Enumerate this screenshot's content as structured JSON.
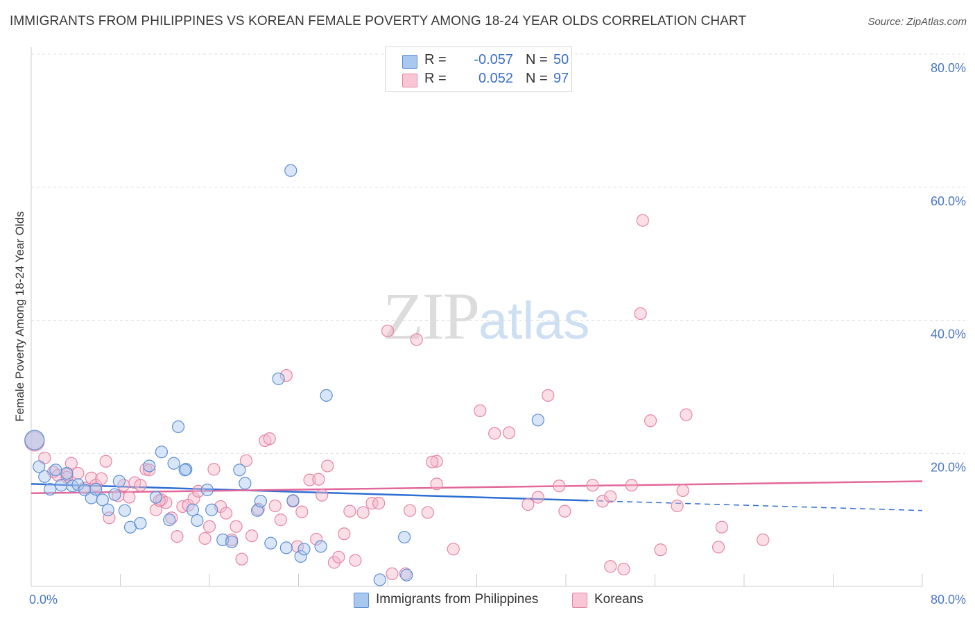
{
  "title": "IMMIGRANTS FROM PHILIPPINES VS KOREAN FEMALE POVERTY AMONG 18-24 YEAR OLDS CORRELATION CHART",
  "source": "Source: ZipAtlas.com",
  "watermark": {
    "zip": "ZIP",
    "atlas": "atlas"
  },
  "stats": [
    {
      "r_label": "R =",
      "r_value": "-0.057",
      "n_label": "N =",
      "n_value": "50"
    },
    {
      "r_label": "R =",
      "r_value": "0.052",
      "n_label": "N =",
      "n_value": "97"
    }
  ],
  "legend": [
    {
      "label": "Immigrants from Philippines"
    },
    {
      "label": "Koreans"
    }
  ],
  "colors": {
    "blue_fill": "#a9c8ee",
    "blue_stroke": "#5b8fd6",
    "blue_line": "#2e6fd3",
    "pink_fill": "#f4b7ca",
    "pink_stroke": "#e585a6",
    "pink_line": "#e2679a",
    "tick_text": "#4a78c2",
    "grid": "#dddddd"
  },
  "chart_data": {
    "type": "scatter",
    "title": "IMMIGRANTS FROM PHILIPPINES VS KOREAN FEMALE POVERTY AMONG 18-24 YEAR OLDS CORRELATION CHART",
    "xlabel": "",
    "ylabel": "Female Poverty Among 18-24 Year Olds",
    "xlim": [
      0,
      80
    ],
    "ylim": [
      0,
      80
    ],
    "x_tick_labels": [
      "0.0%",
      "80.0%"
    ],
    "y_ticks": [
      20,
      40,
      60,
      80
    ],
    "y_tick_labels": [
      "20.0%",
      "40.0%",
      "60.0%",
      "80.0%"
    ],
    "grid": true,
    "series": [
      {
        "name": "Immigrants from Philippines",
        "r": -0.057,
        "n": 50,
        "trend": {
          "x_solid": [
            0,
            50
          ],
          "y_solid": [
            15.4,
            12.9
          ],
          "x_dashed": [
            50,
            80
          ],
          "y_dashed": [
            12.9,
            11.4
          ]
        },
        "points": [
          [
            0.3,
            22.0
          ],
          [
            0.7,
            18.0
          ],
          [
            1.2,
            16.5
          ],
          [
            1.7,
            14.6
          ],
          [
            2.2,
            17.5
          ],
          [
            2.7,
            15.2
          ],
          [
            3.2,
            17.0
          ],
          [
            3.7,
            15.1
          ],
          [
            4.2,
            15.3
          ],
          [
            4.8,
            14.5
          ],
          [
            5.4,
            13.3
          ],
          [
            5.8,
            14.6
          ],
          [
            6.4,
            13.0
          ],
          [
            6.9,
            11.5
          ],
          [
            7.5,
            13.8
          ],
          [
            7.9,
            15.8
          ],
          [
            8.4,
            11.4
          ],
          [
            8.9,
            8.9
          ],
          [
            9.8,
            9.5
          ],
          [
            10.6,
            18.1
          ],
          [
            11.2,
            13.4
          ],
          [
            11.7,
            20.2
          ],
          [
            12.4,
            10.0
          ],
          [
            12.8,
            18.5
          ],
          [
            13.2,
            24.0
          ],
          [
            13.9,
            17.6
          ],
          [
            14.5,
            11.5
          ],
          [
            14.9,
            9.9
          ],
          [
            15.8,
            14.5
          ],
          [
            16.2,
            11.5
          ],
          [
            17.2,
            7.0
          ],
          [
            18.0,
            6.7
          ],
          [
            18.7,
            17.5
          ],
          [
            19.2,
            15.5
          ],
          [
            20.3,
            11.4
          ],
          [
            20.6,
            12.8
          ],
          [
            21.5,
            6.5
          ],
          [
            22.2,
            31.2
          ],
          [
            22.9,
            5.8
          ],
          [
            23.5,
            12.9
          ],
          [
            24.2,
            4.5
          ],
          [
            24.5,
            5.6
          ],
          [
            26.0,
            6.0
          ],
          [
            26.5,
            28.7
          ],
          [
            23.3,
            62.5
          ],
          [
            31.3,
            1.0
          ],
          [
            33.5,
            7.4
          ],
          [
            33.7,
            1.7
          ],
          [
            45.5,
            25.0
          ],
          [
            13.8,
            17.5
          ]
        ]
      },
      {
        "name": "Koreans",
        "r": 0.052,
        "n": 97,
        "trend": {
          "x": [
            0,
            80
          ],
          "y": [
            14.0,
            15.8
          ]
        },
        "points": [
          [
            0.3,
            21.8
          ],
          [
            1.2,
            19.3
          ],
          [
            2.0,
            17.2
          ],
          [
            2.4,
            16.7
          ],
          [
            3.2,
            16.8
          ],
          [
            3.6,
            18.5
          ],
          [
            4.2,
            17.0
          ],
          [
            4.8,
            14.8
          ],
          [
            5.4,
            16.3
          ],
          [
            5.8,
            15.2
          ],
          [
            6.3,
            16.2
          ],
          [
            6.7,
            18.8
          ],
          [
            7.0,
            10.3
          ],
          [
            7.8,
            13.6
          ],
          [
            8.3,
            15.2
          ],
          [
            8.8,
            13.4
          ],
          [
            9.3,
            15.6
          ],
          [
            9.8,
            15.2
          ],
          [
            10.3,
            17.6
          ],
          [
            10.6,
            17.5
          ],
          [
            11.2,
            11.5
          ],
          [
            11.7,
            13.0
          ],
          [
            12.1,
            12.6
          ],
          [
            12.6,
            10.3
          ],
          [
            13.1,
            7.5
          ],
          [
            13.6,
            12.0
          ],
          [
            14.1,
            12.2
          ],
          [
            14.6,
            13.2
          ],
          [
            15.0,
            14.3
          ],
          [
            15.6,
            7.2
          ],
          [
            16.0,
            9.0
          ],
          [
            16.4,
            17.6
          ],
          [
            17.0,
            12.0
          ],
          [
            17.5,
            11.0
          ],
          [
            18.0,
            7.0
          ],
          [
            18.4,
            9.0
          ],
          [
            18.9,
            4.1
          ],
          [
            19.3,
            18.9
          ],
          [
            19.8,
            7.6
          ],
          [
            20.4,
            11.6
          ],
          [
            21.0,
            21.9
          ],
          [
            21.4,
            22.2
          ],
          [
            21.9,
            12.1
          ],
          [
            22.4,
            10.0
          ],
          [
            22.9,
            31.7
          ],
          [
            23.5,
            12.8
          ],
          [
            23.9,
            6.0
          ],
          [
            24.3,
            11.2
          ],
          [
            25.0,
            16.0
          ],
          [
            25.6,
            7.1
          ],
          [
            26.1,
            13.7
          ],
          [
            26.6,
            18.1
          ],
          [
            27.2,
            3.6
          ],
          [
            27.6,
            4.4
          ],
          [
            28.1,
            7.9
          ],
          [
            28.6,
            11.3
          ],
          [
            29.1,
            3.9
          ],
          [
            29.8,
            11.1
          ],
          [
            30.6,
            12.5
          ],
          [
            31.2,
            12.5
          ],
          [
            32.0,
            38.4
          ],
          [
            32.4,
            1.9
          ],
          [
            33.6,
            1.9
          ],
          [
            34.0,
            11.4
          ],
          [
            34.6,
            37.1
          ],
          [
            35.6,
            11.1
          ],
          [
            36.4,
            18.8
          ],
          [
            36.4,
            15.4
          ],
          [
            40.3,
            26.4
          ],
          [
            41.6,
            23.0
          ],
          [
            42.9,
            23.1
          ],
          [
            44.6,
            12.3
          ],
          [
            45.5,
            13.4
          ],
          [
            46.4,
            28.7
          ],
          [
            47.4,
            15.1
          ],
          [
            47.9,
            11.3
          ],
          [
            50.4,
            15.2
          ],
          [
            51.3,
            12.8
          ],
          [
            52.0,
            3.0
          ],
          [
            53.2,
            2.6
          ],
          [
            53.9,
            15.2
          ],
          [
            54.7,
            41.0
          ],
          [
            54.9,
            55.0
          ],
          [
            55.6,
            24.9
          ],
          [
            56.5,
            5.5
          ],
          [
            58.0,
            12.1
          ],
          [
            58.5,
            14.4
          ],
          [
            58.8,
            25.8
          ],
          [
            61.7,
            5.9
          ],
          [
            62.0,
            8.9
          ],
          [
            65.7,
            7.0
          ],
          [
            37.9,
            5.6
          ],
          [
            52.0,
            13.5
          ],
          [
            11.5,
            12.9
          ],
          [
            3.2,
            16.4
          ],
          [
            25.8,
            16.1
          ],
          [
            36.0,
            18.7
          ]
        ]
      }
    ]
  }
}
